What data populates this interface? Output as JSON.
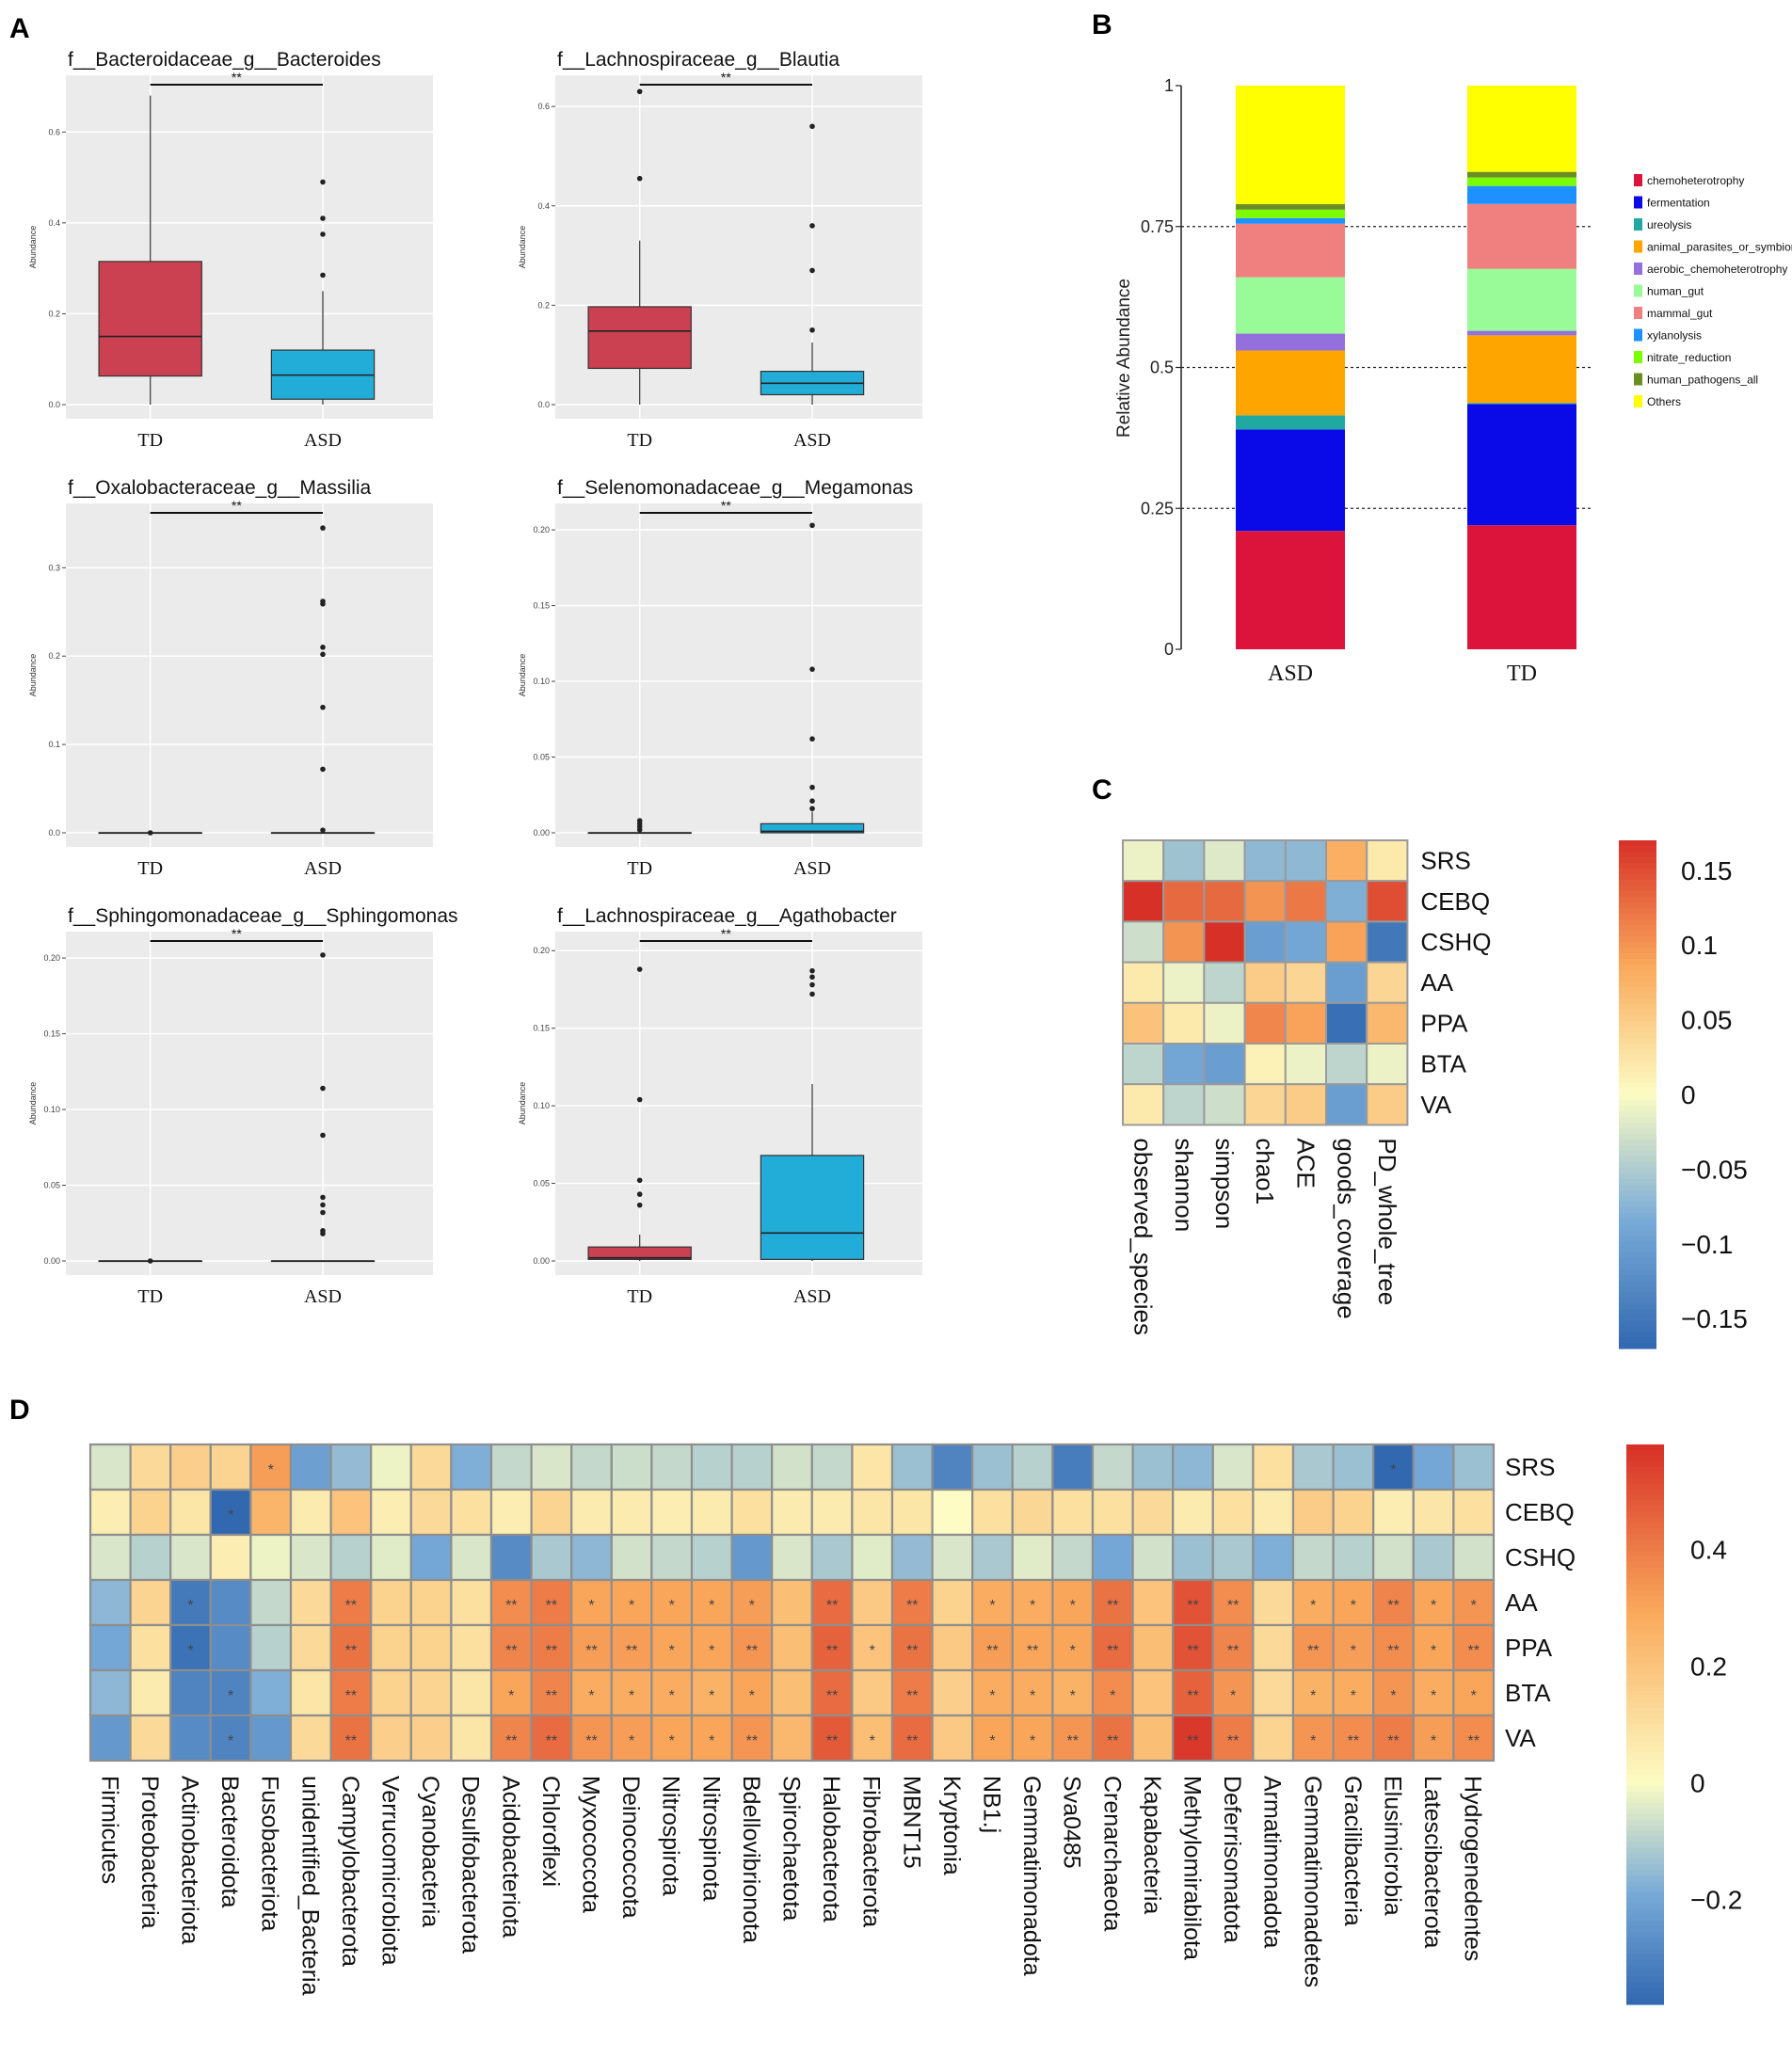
{
  "panel_labels": [
    "A",
    "B",
    "C",
    "D"
  ],
  "colors": {
    "td": "#CB4152",
    "asd": "#22ADD8",
    "plot_bg": "#EBEBEB"
  },
  "chart_data": [
    {
      "panel": "A",
      "type": "box",
      "ylabel": "Abundance",
      "significance": "**",
      "plots": [
        {
          "title": "f__Bacteroidaceae_g__Bacteroides",
          "ylim": [
            0,
            0.7
          ],
          "yticks": [
            0.0,
            0.2,
            0.4,
            0.6
          ],
          "tick_labels": [
            "0.0",
            "0.2",
            "0.4",
            "0.6"
          ],
          "groups": [
            {
              "name": "TD",
              "q1": 0.063,
              "median": 0.15,
              "q3": 0.315,
              "whisker_low": 0,
              "whisker_high": 0.68,
              "outliers": []
            },
            {
              "name": "ASD",
              "q1": 0.012,
              "median": 0.065,
              "q3": 0.12,
              "whisker_low": 0,
              "whisker_high": 0.25,
              "outliers": [
                0.49,
                0.41,
                0.375,
                0.285
              ]
            }
          ]
        },
        {
          "title": "f__Lachnospiraceae_g__Blautia",
          "ylim": [
            0,
            0.64
          ],
          "yticks": [
            0.0,
            0.2,
            0.4,
            0.6
          ],
          "tick_labels": [
            "0.0",
            "0.2",
            "0.4",
            "0.6"
          ],
          "groups": [
            {
              "name": "TD",
              "q1": 0.073,
              "median": 0.148,
              "q3": 0.197,
              "whisker_low": 0,
              "whisker_high": 0.33,
              "outliers": [
                0.455,
                0.63
              ]
            },
            {
              "name": "ASD",
              "q1": 0.02,
              "median": 0.043,
              "q3": 0.067,
              "whisker_low": 0,
              "whisker_high": 0.125,
              "outliers": [
                0.56,
                0.36,
                0.27,
                0.15
              ]
            }
          ]
        },
        {
          "title": "f__Oxalobacteraceae_g__Massilia",
          "ylim": [
            0,
            0.36
          ],
          "yticks": [
            0.0,
            0.1,
            0.2,
            0.3
          ],
          "tick_labels": [
            "0.0",
            "0.1",
            "0.2",
            "0.3"
          ],
          "groups": [
            {
              "name": "TD",
              "q1": 0,
              "median": 0,
              "q3": 0,
              "whisker_low": 0,
              "whisker_high": 0,
              "outliers": [
                0.0
              ]
            },
            {
              "name": "ASD",
              "q1": 0,
              "median": 0,
              "q3": 0,
              "whisker_low": 0,
              "whisker_high": 0,
              "outliers": [
                0.345,
                0.262,
                0.259,
                0.21,
                0.202,
                0.142,
                0.072,
                0.003
              ]
            }
          ]
        },
        {
          "title": "f__Selenomonadaceae_g__Megamonas",
          "ylim": [
            0,
            0.21
          ],
          "yticks": [
            0.0,
            0.05,
            0.1,
            0.15,
            0.2
          ],
          "tick_labels": [
            "0.00",
            "0.05",
            "0.10",
            "0.15",
            "0.20"
          ],
          "groups": [
            {
              "name": "TD",
              "q1": 0,
              "median": 0,
              "q3": 0,
              "whisker_low": 0,
              "whisker_high": 0,
              "outliers": [
                0.008,
                0.006,
                0.004,
                0.002
              ]
            },
            {
              "name": "ASD",
              "q1": 0,
              "median": 0.001,
              "q3": 0.006,
              "whisker_low": 0,
              "whisker_high": 0.014,
              "outliers": [
                0.203,
                0.108,
                0.062,
                0.03,
                0.021,
                0.016
              ]
            }
          ]
        },
        {
          "title": "f__Sphingomonadaceae_g__Sphingomonas",
          "ylim": [
            0,
            0.21
          ],
          "yticks": [
            0.0,
            0.05,
            0.1,
            0.15,
            0.2
          ],
          "tick_labels": [
            "0.00",
            "0.05",
            "0.10",
            "0.15",
            "0.20"
          ],
          "groups": [
            {
              "name": "TD",
              "q1": 0,
              "median": 0,
              "q3": 0,
              "whisker_low": 0,
              "whisker_high": 0,
              "outliers": [
                0.0
              ]
            },
            {
              "name": "ASD",
              "q1": 0,
              "median": 0,
              "q3": 0,
              "whisker_low": 0,
              "whisker_high": 0,
              "outliers": [
                0.202,
                0.114,
                0.083,
                0.042,
                0.037,
                0.032,
                0.02,
                0.018
              ]
            }
          ]
        },
        {
          "title": "f__Lachnospiraceae_g__Agathobacter",
          "ylim": [
            0,
            0.205
          ],
          "yticks": [
            0.0,
            0.05,
            0.1,
            0.15,
            0.2
          ],
          "tick_labels": [
            "0.00",
            "0.05",
            "0.10",
            "0.15",
            "0.20"
          ],
          "groups": [
            {
              "name": "TD",
              "q1": 0.001,
              "median": 0.002,
              "q3": 0.009,
              "whisker_low": 0,
              "whisker_high": 0.017,
              "outliers": [
                0.188,
                0.104,
                0.052,
                0.043,
                0.036
              ]
            },
            {
              "name": "ASD",
              "q1": 0.001,
              "median": 0.018,
              "q3": 0.068,
              "whisker_low": 0,
              "whisker_high": 0.114,
              "outliers": [
                0.187,
                0.183,
                0.178,
                0.172
              ]
            }
          ]
        }
      ]
    },
    {
      "panel": "B",
      "type": "stacked_bar",
      "ylabel": "Relative Abundance",
      "ylim": [
        0,
        1
      ],
      "yticks": [
        0,
        0.25,
        0.5,
        0.75,
        1
      ],
      "tick_labels": [
        "0",
        "0.25",
        "0.5",
        "0.75",
        "1"
      ],
      "gridlines": [
        0.25,
        0.5,
        0.75
      ],
      "categories": [
        "ASD",
        "TD"
      ],
      "series": [
        {
          "name": "chemoheterotrophy",
          "color": "#DC143C",
          "values": [
            0.21,
            0.22
          ]
        },
        {
          "name": "fermentation",
          "color": "#0A0AE8",
          "values": [
            0.18,
            0.215
          ]
        },
        {
          "name": "ureolysis",
          "color": "#20A9A3",
          "values": [
            0.025,
            0.002
          ]
        },
        {
          "name": "animal_parasites_or_symbionts",
          "color": "#FFA500",
          "values": [
            0.115,
            0.12
          ]
        },
        {
          "name": "aerobic_chemoheterotrophy",
          "color": "#9370DB",
          "values": [
            0.03,
            0.008
          ]
        },
        {
          "name": "human_gut",
          "color": "#98FB98",
          "values": [
            0.1,
            0.11
          ]
        },
        {
          "name": "mammal_gut",
          "color": "#F08080",
          "values": [
            0.095,
            0.115
          ]
        },
        {
          "name": "xylanolysis",
          "color": "#1E90FF",
          "values": [
            0.01,
            0.032
          ]
        },
        {
          "name": "nitrate_reduction",
          "color": "#7CFC00",
          "values": [
            0.015,
            0.015
          ]
        },
        {
          "name": "human_pathogens_all",
          "color": "#6B8E23",
          "values": [
            0.01,
            0.01
          ]
        },
        {
          "name": "Others",
          "color": "#FFFF00",
          "values": [
            0.21,
            0.153
          ]
        }
      ]
    },
    {
      "panel": "C",
      "type": "heatmap",
      "rows": [
        "SRS",
        "CEBQ",
        "CSHQ",
        "AA",
        "PPA",
        "BTA",
        "VA"
      ],
      "columns": [
        "observed_species",
        "shannon",
        "simpson",
        "chao1",
        "ACE",
        "goods_coverage",
        "PD_whole_tree"
      ],
      "values": [
        [
          -0.01,
          -0.06,
          -0.02,
          -0.07,
          -0.07,
          0.08,
          0.02
        ],
        [
          0.17,
          0.13,
          0.13,
          0.1,
          0.12,
          -0.08,
          0.15
        ],
        [
          -0.03,
          0.1,
          0.17,
          -0.1,
          -0.09,
          0.09,
          -0.15
        ],
        [
          0.02,
          -0.01,
          -0.04,
          0.05,
          0.04,
          -0.1,
          0.04
        ],
        [
          0.06,
          0.02,
          -0.01,
          0.11,
          0.09,
          -0.16,
          0.07
        ],
        [
          -0.04,
          -0.09,
          -0.1,
          0.01,
          -0.01,
          -0.04,
          -0.01
        ],
        [
          0.02,
          -0.04,
          -0.03,
          0.04,
          0.05,
          -0.1,
          0.05
        ]
      ],
      "color_range": [
        -0.17,
        0.17
      ],
      "colorbar_ticks": [
        0.15,
        0.1,
        0.05,
        0,
        -0.05,
        -0.1,
        -0.15
      ],
      "colorbar_labels": [
        "0.15",
        "0.1",
        "0.05",
        "0",
        "−0.05",
        "−0.1",
        "−0.15"
      ]
    },
    {
      "panel": "D",
      "type": "heatmap",
      "rows": [
        "SRS",
        "CEBQ",
        "CSHQ",
        "AA",
        "PPA",
        "BTA",
        "VA"
      ],
      "columns": [
        "Firmicutes",
        "Proteobacteria",
        "Actinobacteriota",
        "Bacteroidota",
        "Fusobacteriota",
        "unidentified_Bacteria",
        "Campylobacterota",
        "Verrucomicrobiota",
        "Cyanobacteria",
        "Desulfobacterota",
        "Acidobacteriota",
        "Chloroflexi",
        "Myxococcota",
        "Deinococcota",
        "Nitrospirota",
        "Nitrospinota",
        "Bdellovibrionota",
        "Spirochaetota",
        "Halobacterota",
        "Fibrobacterota",
        "MBNT15",
        "Kryptonia",
        "NB1.j",
        "Gemmatimonadota",
        "Sva0485",
        "Crenarchaeota",
        "Kapabacteria",
        "Methylomirabilota",
        "Deferrisomatota",
        "Armatimonadota",
        "Gemmatimonadetes",
        "Gracilibacteria",
        "Elusimicrobia",
        "Latescibacterota",
        "Hydrogenedentes"
      ],
      "values": [
        [
          -0.05,
          0.12,
          0.16,
          0.14,
          0.32,
          -0.22,
          -0.15,
          -0.02,
          0.12,
          -0.18,
          -0.08,
          -0.05,
          -0.08,
          -0.07,
          -0.08,
          -0.1,
          -0.1,
          -0.06,
          -0.08,
          0.08,
          -0.14,
          -0.3,
          -0.14,
          -0.1,
          -0.32,
          -0.08,
          -0.14,
          -0.16,
          -0.05,
          0.1,
          -0.12,
          -0.14,
          -0.38,
          -0.2,
          -0.14
        ],
        [
          0.05,
          0.15,
          0.08,
          -0.4,
          0.25,
          0.06,
          0.2,
          0.05,
          0.12,
          0.1,
          0.05,
          0.14,
          0.06,
          0.06,
          0.05,
          0.06,
          0.1,
          0.06,
          0.06,
          0.08,
          0.08,
          0.0,
          0.1,
          0.13,
          0.1,
          0.1,
          0.12,
          0.06,
          0.1,
          0.06,
          0.17,
          0.15,
          0.05,
          0.08,
          0.1
        ],
        [
          -0.05,
          -0.1,
          -0.05,
          0.05,
          -0.02,
          -0.05,
          -0.1,
          -0.04,
          -0.2,
          -0.05,
          -0.28,
          -0.12,
          -0.16,
          -0.06,
          -0.08,
          -0.1,
          -0.24,
          -0.05,
          -0.12,
          -0.04,
          -0.15,
          -0.05,
          -0.12,
          -0.04,
          -0.08,
          -0.2,
          -0.06,
          -0.14,
          -0.12,
          -0.18,
          -0.08,
          -0.1,
          -0.06,
          -0.12,
          -0.06
        ],
        [
          -0.16,
          0.14,
          -0.33,
          -0.28,
          -0.08,
          0.12,
          0.4,
          0.15,
          0.15,
          0.1,
          0.36,
          0.4,
          0.3,
          0.3,
          0.3,
          0.3,
          0.32,
          0.22,
          0.44,
          0.18,
          0.4,
          0.15,
          0.28,
          0.28,
          0.3,
          0.42,
          0.2,
          0.5,
          0.36,
          0.12,
          0.28,
          0.3,
          0.38,
          0.3,
          0.34
        ],
        [
          -0.2,
          0.1,
          -0.35,
          -0.28,
          -0.1,
          0.12,
          0.42,
          0.15,
          0.15,
          0.1,
          0.38,
          0.4,
          0.32,
          0.32,
          0.3,
          0.3,
          0.34,
          0.22,
          0.46,
          0.2,
          0.42,
          0.18,
          0.32,
          0.3,
          0.3,
          0.44,
          0.22,
          0.5,
          0.38,
          0.12,
          0.34,
          0.32,
          0.36,
          0.3,
          0.36
        ],
        [
          -0.16,
          0.06,
          -0.3,
          -0.3,
          -0.18,
          0.08,
          0.4,
          0.15,
          0.14,
          0.08,
          0.3,
          0.38,
          0.28,
          0.28,
          0.28,
          0.26,
          0.3,
          0.22,
          0.44,
          0.18,
          0.4,
          0.16,
          0.28,
          0.28,
          0.26,
          0.36,
          0.2,
          0.46,
          0.34,
          0.12,
          0.26,
          0.28,
          0.34,
          0.28,
          0.3
        ],
        [
          -0.24,
          0.12,
          -0.28,
          -0.3,
          -0.24,
          0.12,
          0.42,
          0.16,
          0.16,
          0.08,
          0.38,
          0.44,
          0.34,
          0.32,
          0.3,
          0.3,
          0.34,
          0.24,
          0.48,
          0.22,
          0.44,
          0.18,
          0.3,
          0.3,
          0.34,
          0.42,
          0.22,
          0.56,
          0.4,
          0.14,
          0.34,
          0.36,
          0.4,
          0.32,
          0.36
        ]
      ],
      "significance": [
        [
          "",
          "",
          "",
          "",
          "*",
          "",
          "",
          "",
          "",
          "",
          "",
          "",
          "",
          "",
          "",
          "",
          "",
          "",
          "",
          "",
          "",
          "",
          "",
          "",
          "",
          "",
          "",
          "",
          "",
          "",
          "",
          "",
          "*",
          "",
          ""
        ],
        [
          "",
          "",
          "",
          "*",
          "",
          "",
          "",
          "",
          "",
          "",
          "",
          "",
          "",
          "",
          "",
          "",
          "",
          "",
          "",
          "",
          "",
          "",
          "",
          "",
          "",
          "",
          "",
          "",
          "",
          "",
          "",
          "",
          "",
          "",
          ""
        ],
        [
          "",
          "",
          "",
          "",
          "",
          "",
          "",
          "",
          "",
          "",
          "",
          "",
          "",
          "",
          "",
          "",
          "",
          "",
          "",
          "",
          "",
          "",
          "",
          "",
          "",
          "",
          "",
          "",
          "",
          "",
          "",
          "",
          "",
          "",
          ""
        ],
        [
          "",
          "",
          "*",
          "",
          "",
          "",
          "**",
          "",
          "",
          "",
          "**",
          "**",
          "*",
          "*",
          "*",
          "*",
          "*",
          "",
          "**",
          "",
          "**",
          "",
          "*",
          "*",
          "*",
          "**",
          "",
          "**",
          "**",
          "",
          "*",
          "*",
          "**",
          "*",
          "*"
        ],
        [
          "",
          "",
          "*",
          "",
          "",
          "",
          "**",
          "",
          "",
          "",
          "**",
          "**",
          "**",
          "**",
          "*",
          "*",
          "**",
          "",
          "**",
          "*",
          "**",
          "",
          "**",
          "**",
          "*",
          "**",
          "",
          "**",
          "**",
          "",
          "**",
          "*",
          "**",
          "*",
          "**"
        ],
        [
          "",
          "",
          "",
          "*",
          "",
          "",
          "**",
          "",
          "",
          "",
          "*",
          "**",
          "*",
          "*",
          "*",
          "*",
          "*",
          "",
          "**",
          "",
          "**",
          "",
          "*",
          "*",
          "*",
          "*",
          "",
          "**",
          "*",
          "",
          "*",
          "*",
          "*",
          "*",
          "*"
        ],
        [
          "",
          "",
          "",
          "*",
          "",
          "",
          "**",
          "",
          "",
          "",
          "**",
          "**",
          "**",
          "*",
          "*",
          "*",
          "**",
          "",
          "**",
          "*",
          "**",
          "",
          "*",
          "*",
          "**",
          "**",
          "",
          "**",
          "**",
          "",
          "*",
          "**",
          "**",
          "*",
          "**"
        ]
      ],
      "color_range": [
        -0.38,
        0.58
      ],
      "colorbar_ticks": [
        0.4,
        0.2,
        0,
        -0.2
      ],
      "colorbar_labels": [
        "0.4",
        "0.2",
        "0",
        "−0.2"
      ]
    }
  ]
}
